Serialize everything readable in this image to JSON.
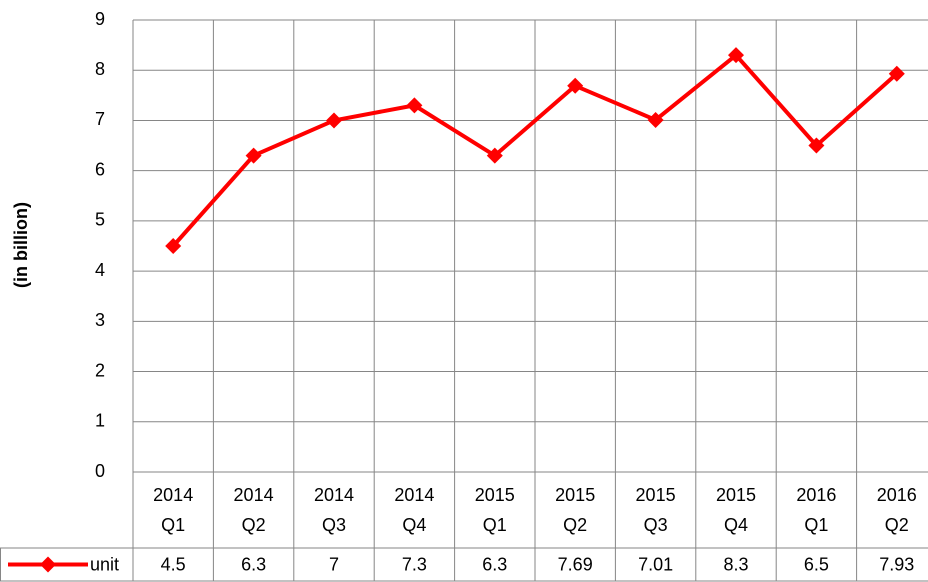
{
  "chart_data": {
    "type": "line",
    "y_label": "(in billion)",
    "categories": [
      "2014 Q1",
      "2014 Q2",
      "2014 Q3",
      "2014 Q4",
      "2015 Q1",
      "2015 Q2",
      "2015 Q3",
      "2015 Q4",
      "2016 Q1",
      "2016 Q2"
    ],
    "series": [
      {
        "name": "unit",
        "color": "#ff0000",
        "values": [
          4.5,
          6.3,
          7,
          7.3,
          6.3,
          7.69,
          7.01,
          8.3,
          6.5,
          7.93
        ]
      }
    ],
    "ylim": [
      0,
      9
    ],
    "yticks": [
      0,
      1,
      2,
      3,
      4,
      5,
      6,
      7,
      8,
      9
    ],
    "grid": true,
    "data_table": true
  }
}
